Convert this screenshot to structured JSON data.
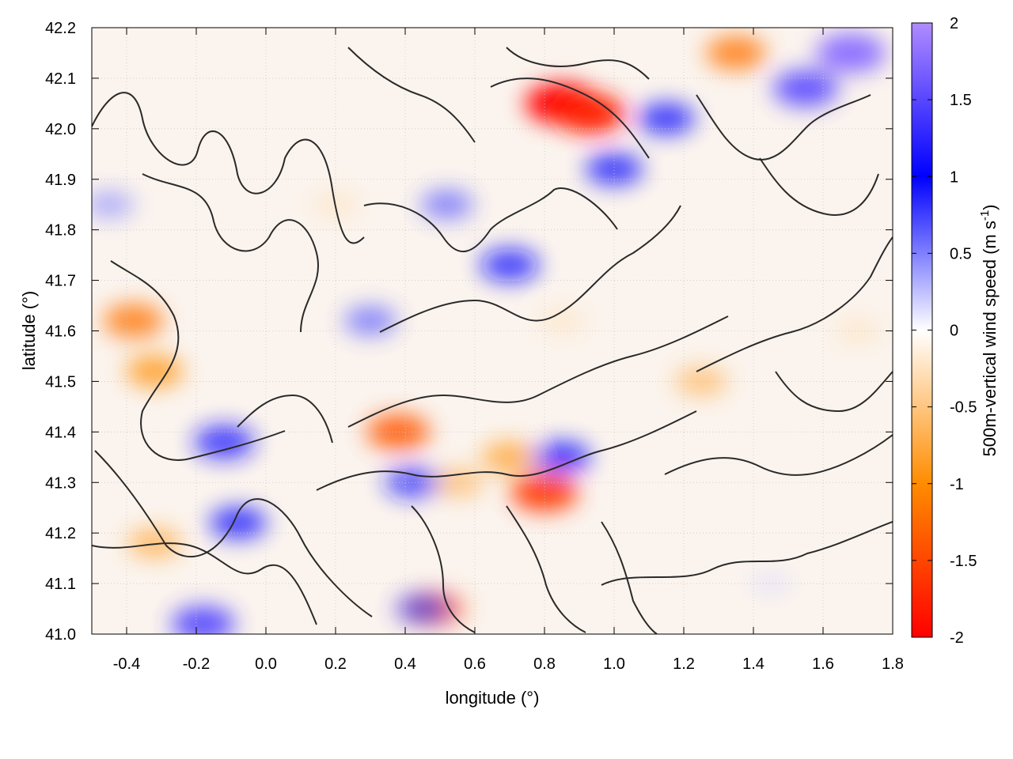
{
  "chart_data": {
    "type": "heatmap",
    "title": "",
    "xlabel": "longitude (°)",
    "ylabel": "latitude (°)",
    "xlim": [
      -0.5,
      1.8
    ],
    "ylim": [
      41.0,
      42.2
    ],
    "x_ticks": [
      "-0.4",
      "-0.2",
      "0.0",
      "0.2",
      "0.4",
      "0.6",
      "0.8",
      "1.0",
      "1.2",
      "1.4",
      "1.6",
      "1.8"
    ],
    "x_tick_values": [
      -0.4,
      -0.2,
      0.0,
      0.2,
      0.4,
      0.6,
      0.8,
      1.0,
      1.2,
      1.4,
      1.6,
      1.8
    ],
    "y_ticks": [
      "41.0",
      "41.1",
      "41.2",
      "41.3",
      "41.4",
      "41.5",
      "41.6",
      "41.7",
      "41.8",
      "41.9",
      "42.0",
      "42.1",
      "42.2"
    ],
    "y_tick_values": [
      41.0,
      41.1,
      41.2,
      41.3,
      41.4,
      41.5,
      41.6,
      41.7,
      41.8,
      41.9,
      42.0,
      42.1,
      42.2
    ],
    "grid": true,
    "colorbar": {
      "label": "500m-vertical wind speed (m s",
      "label_superscript": "-1",
      "label_close": ")",
      "range": [
        -2,
        2
      ],
      "ticks": [
        "2",
        "1.5",
        "1",
        "0.5",
        "0",
        "-0.5",
        "-1",
        "-1.5",
        "-2"
      ],
      "tick_values": [
        2,
        1.5,
        1,
        0.5,
        0,
        -0.5,
        -1,
        -1.5,
        -2
      ],
      "colors": [
        "#ff0000",
        "#ff8c00",
        "#ffffff",
        "#0000ff",
        "#b08cff"
      ]
    },
    "features": [
      {
        "lon": 0.85,
        "lat": 42.05,
        "value": -2.0
      },
      {
        "lon": 0.93,
        "lat": 42.03,
        "value": -1.8
      },
      {
        "lon": -0.38,
        "lat": 41.62,
        "value": -1.2
      },
      {
        "lon": -0.32,
        "lat": 41.52,
        "value": -1.0
      },
      {
        "lon": -0.32,
        "lat": 41.18,
        "value": -0.8
      },
      {
        "lon": 0.38,
        "lat": 41.4,
        "value": -1.4
      },
      {
        "lon": 0.8,
        "lat": 41.28,
        "value": -1.6
      },
      {
        "lon": 0.48,
        "lat": 41.05,
        "value": -1.3
      },
      {
        "lon": 0.55,
        "lat": 41.3,
        "value": -0.7
      },
      {
        "lon": 0.7,
        "lat": 41.35,
        "value": -0.9
      },
      {
        "lon": 1.25,
        "lat": 41.5,
        "value": -0.7
      },
      {
        "lon": 1.35,
        "lat": 42.15,
        "value": -1.2
      },
      {
        "lon": 0.2,
        "lat": 41.85,
        "value": -0.3
      },
      {
        "lon": 0.85,
        "lat": 41.62,
        "value": -0.3
      },
      {
        "lon": 1.7,
        "lat": 41.6,
        "value": -0.3
      },
      {
        "lon": -0.12,
        "lat": 41.38,
        "value": 1.2
      },
      {
        "lon": -0.08,
        "lat": 41.22,
        "value": 1.0
      },
      {
        "lon": 0.7,
        "lat": 41.73,
        "value": 1.1
      },
      {
        "lon": 0.52,
        "lat": 41.85,
        "value": 0.7
      },
      {
        "lon": 0.3,
        "lat": 41.62,
        "value": 0.7
      },
      {
        "lon": 1.0,
        "lat": 41.92,
        "value": 1.0
      },
      {
        "lon": 1.15,
        "lat": 42.02,
        "value": 1.0
      },
      {
        "lon": 1.55,
        "lat": 42.08,
        "value": 1.5
      },
      {
        "lon": 1.68,
        "lat": 42.15,
        "value": 1.8
      },
      {
        "lon": 0.85,
        "lat": 41.35,
        "value": 1.0
      },
      {
        "lon": 0.42,
        "lat": 41.3,
        "value": 0.9
      },
      {
        "lon": 0.45,
        "lat": 41.05,
        "value": 0.8
      },
      {
        "lon": -0.45,
        "lat": 41.85,
        "value": 0.5
      },
      {
        "lon": -0.18,
        "lat": 41.02,
        "value": 1.4
      },
      {
        "lon": 1.45,
        "lat": 41.1,
        "value": 0.15
      }
    ]
  }
}
